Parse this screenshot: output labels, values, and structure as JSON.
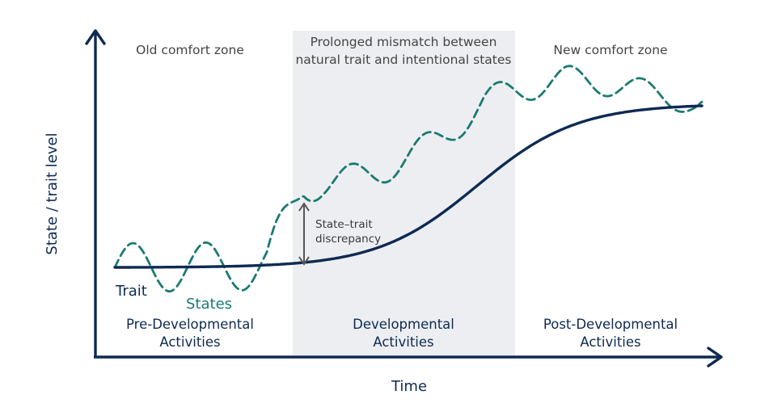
{
  "colors": {
    "navy": "#0e2a52",
    "teal": "#1b7b72",
    "shade": "#edeef1",
    "arrow": "#555555"
  },
  "zones": {
    "old": "Old comfort zone",
    "mismatch_line1": "Prolonged mismatch between",
    "mismatch_line2": "natural trait and intentional states",
    "new": "New comfort zone"
  },
  "activities": {
    "pre_line1": "Pre-Developmental",
    "pre_line2": "Activities",
    "dev_line1": "Developmental",
    "dev_line2": "Activities",
    "post_line1": "Post-Developmental",
    "post_line2": "Activities"
  },
  "axes": {
    "x_label": "Time",
    "y_label": "State / trait level"
  },
  "curves": {
    "trait_label": "Trait",
    "states_label": "States"
  },
  "annotation": {
    "line1": "State–trait",
    "line2": "discrepancy"
  }
}
